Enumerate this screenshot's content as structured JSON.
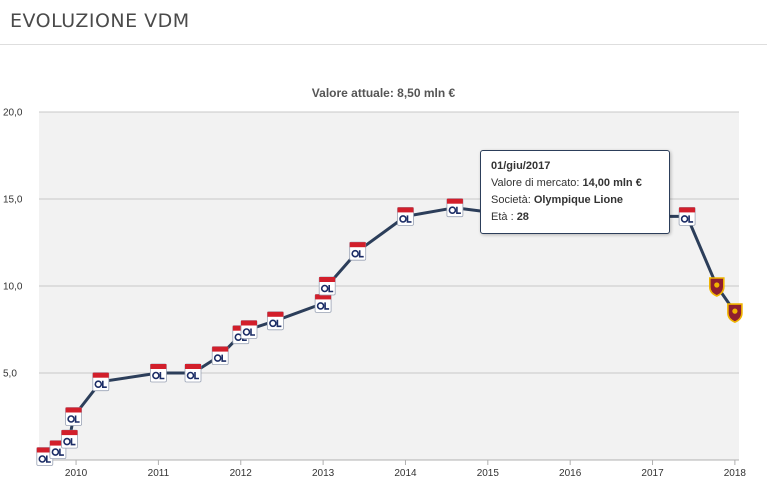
{
  "header": {
    "title": "EVOLUZIONE VDM"
  },
  "chart_data": {
    "type": "line",
    "subtitle": "Valore attuale: 8,50 mln €",
    "ylim": [
      0,
      20
    ],
    "yticks": [
      "5,0",
      "10,0",
      "15,0",
      "20,0"
    ],
    "ytick_values": [
      5,
      10,
      15,
      20
    ],
    "xlim": [
      2009.55,
      2018.05
    ],
    "xticks": [
      "2010",
      "2011",
      "2012",
      "2013",
      "2014",
      "2015",
      "2016",
      "2017",
      "2018"
    ],
    "xtick_values": [
      2010,
      2011,
      2012,
      2013,
      2014,
      2015,
      2016,
      2017,
      2018
    ],
    "grid": true,
    "series": [
      {
        "line_color": "#2c3e5a",
        "points": [
          {
            "x": 2009.62,
            "y": 0.2,
            "club": "Olympique Lione"
          },
          {
            "x": 2009.78,
            "y": 0.6,
            "club": "Olympique Lione"
          },
          {
            "x": 2009.92,
            "y": 1.2,
            "club": "Olympique Lione"
          },
          {
            "x": 2009.97,
            "y": 2.5,
            "club": "Olympique Lione"
          },
          {
            "x": 2010.3,
            "y": 4.5,
            "club": "Olympique Lione"
          },
          {
            "x": 2011.0,
            "y": 5.0,
            "club": "Olympique Lione"
          },
          {
            "x": 2011.42,
            "y": 5.0,
            "club": "Olympique Lione"
          },
          {
            "x": 2011.75,
            "y": 6.0,
            "club": "Olympique Lione"
          },
          {
            "x": 2012.0,
            "y": 7.2,
            "club": "Olympique Lione"
          },
          {
            "x": 2012.1,
            "y": 7.5,
            "club": "Olympique Lione"
          },
          {
            "x": 2012.42,
            "y": 8.0,
            "club": "Olympique Lione"
          },
          {
            "x": 2013.0,
            "y": 9.0,
            "club": "Olympique Lione"
          },
          {
            "x": 2013.05,
            "y": 10.0,
            "club": "Olympique Lione"
          },
          {
            "x": 2013.42,
            "y": 12.0,
            "club": "Olympique Lione"
          },
          {
            "x": 2014.0,
            "y": 14.0,
            "club": "Olympique Lione"
          },
          {
            "x": 2014.6,
            "y": 14.5,
            "club": "Olympique Lione"
          },
          {
            "x": 2015.42,
            "y": 14.0,
            "club": "Olympique Lione"
          },
          {
            "x": 2016.1,
            "y": 14.0,
            "club": "Olympique Lione"
          },
          {
            "x": 2017.05,
            "y": 14.0,
            "club": "Olympique Lione"
          },
          {
            "x": 2017.42,
            "y": 14.0,
            "club": "Olympique Lione"
          },
          {
            "x": 2017.78,
            "y": 10.0,
            "club": "AS Roma"
          },
          {
            "x": 2018.0,
            "y": 8.5,
            "club": "AS Roma"
          }
        ]
      }
    ],
    "tooltip": {
      "date": "01/giu/2017",
      "market_value_label": "Valore di mercato:",
      "market_value": "14,00 mln €",
      "club_label": "Società:",
      "club": "Olympique Lione",
      "age_label": "Età :",
      "age": "28"
    }
  },
  "colors": {
    "line": "#2c3e5a",
    "grid": "#c8c8c8",
    "plot_bg": "#f2f2f2",
    "lyon_red": "#d21f2b",
    "lyon_blue": "#1c2d66",
    "roma_red": "#8e1f2f",
    "roma_gold": "#f0b400"
  },
  "icons": {
    "club_a": "lyon-crest-icon",
    "club_b": "roma-crest-icon"
  }
}
